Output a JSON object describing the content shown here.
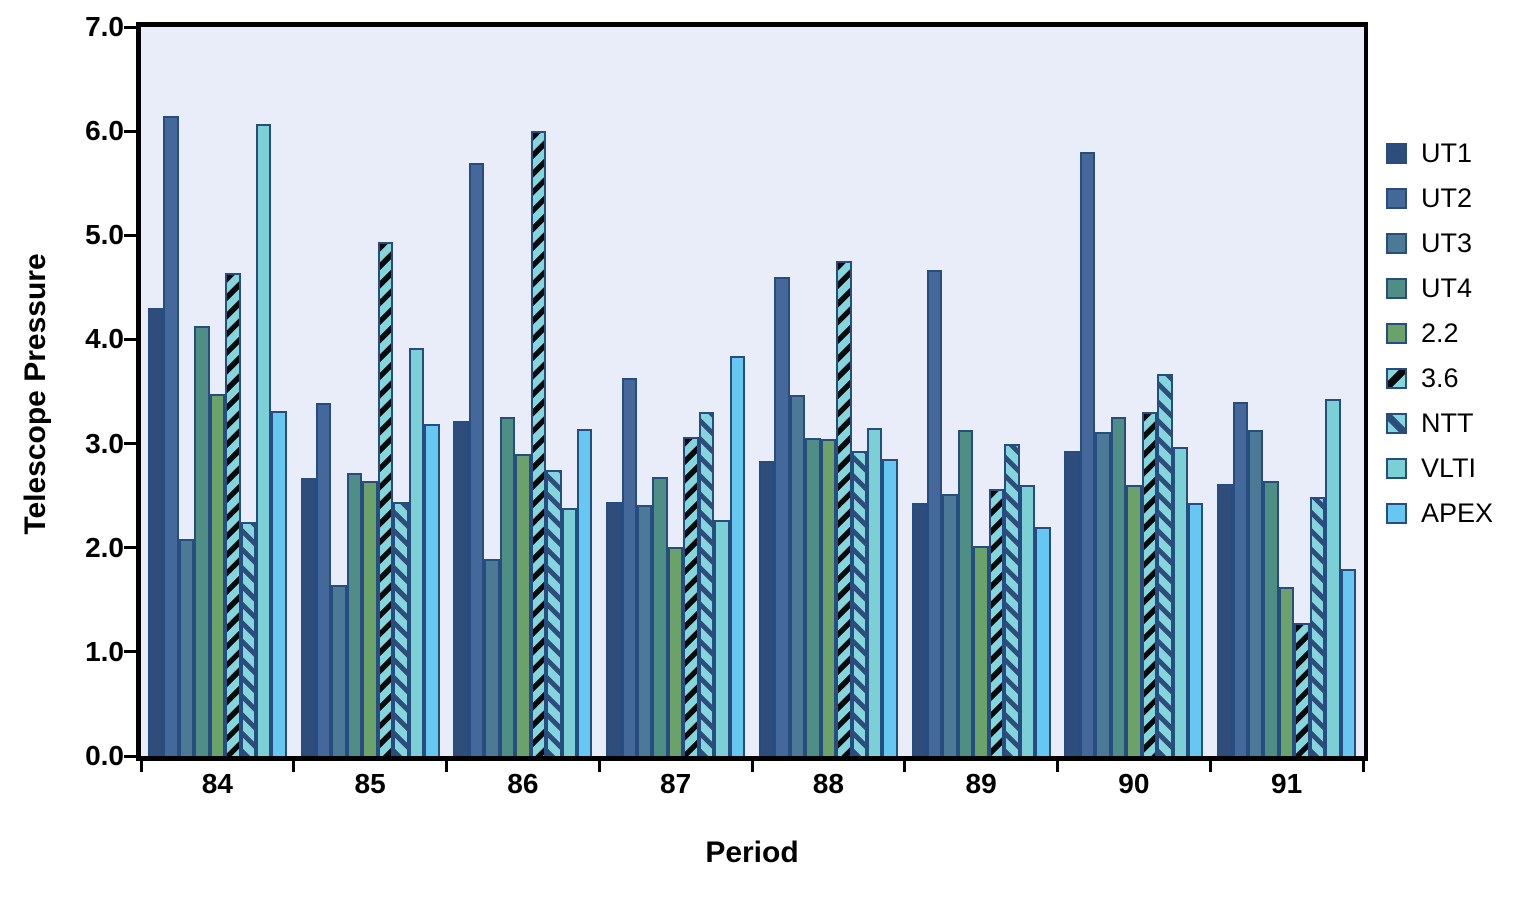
{
  "chart_data": {
    "type": "bar",
    "title": "",
    "xlabel": "Period",
    "ylabel": "Telescope Pressure",
    "ylim": [
      0,
      7
    ],
    "ytick_step": 1,
    "ytick_labels": [
      "0.0",
      "1.0",
      "2.0",
      "3.0",
      "4.0",
      "5.0",
      "6.0",
      "7.0"
    ],
    "grid": false,
    "legend_position": "right",
    "categories": [
      "84",
      "85",
      "86",
      "87",
      "88",
      "89",
      "90",
      "91"
    ],
    "series": [
      {
        "name": "UT1",
        "color": "#2E4D7B",
        "hatch": "none",
        "values": [
          4.3,
          2.67,
          3.22,
          2.44,
          2.83,
          2.43,
          2.93,
          2.61
        ]
      },
      {
        "name": "UT2",
        "color": "#45689B",
        "hatch": "none",
        "values": [
          6.15,
          3.39,
          5.69,
          3.63,
          4.6,
          4.67,
          5.8,
          3.4
        ]
      },
      {
        "name": "UT3",
        "color": "#4B7996",
        "hatch": "none",
        "values": [
          2.08,
          1.64,
          1.89,
          2.41,
          3.47,
          2.52,
          3.11,
          3.13
        ]
      },
      {
        "name": "UT4",
        "color": "#4F8E85",
        "hatch": "none",
        "values": [
          4.13,
          2.72,
          3.26,
          2.68,
          3.05,
          3.13,
          3.26,
          2.64
        ]
      },
      {
        "name": "2.2",
        "color": "#6BA26A",
        "hatch": "none",
        "values": [
          3.48,
          2.64,
          2.9,
          2.01,
          3.04,
          2.02,
          2.6,
          1.62
        ]
      },
      {
        "name": "3.6",
        "color": "#85D5DC",
        "hatch": "forward-black",
        "values": [
          4.64,
          4.94,
          6.0,
          3.06,
          4.75,
          2.56,
          3.3,
          1.28
        ]
      },
      {
        "name": "NTT",
        "color": "#85D5DC",
        "hatch": "back-navy",
        "values": [
          2.25,
          2.44,
          2.75,
          3.3,
          2.93,
          3.0,
          3.67,
          2.49
        ]
      },
      {
        "name": "VLTI",
        "color": "#7BD0D6",
        "hatch": "none",
        "values": [
          6.07,
          3.92,
          2.38,
          2.27,
          3.15,
          2.6,
          2.97,
          3.43
        ]
      },
      {
        "name": "APEX",
        "color": "#66C7F0",
        "hatch": "none",
        "values": [
          3.31,
          3.19,
          3.14,
          3.84,
          2.85,
          2.2,
          2.43,
          1.8
        ]
      }
    ]
  },
  "styles": {
    "plot_bg": "#E9EDF9",
    "bar_border": "#274C7F",
    "hatch_black": "#0A0A0A",
    "hatch_navy": "#2E4D7B",
    "axis_color": "#000000"
  }
}
